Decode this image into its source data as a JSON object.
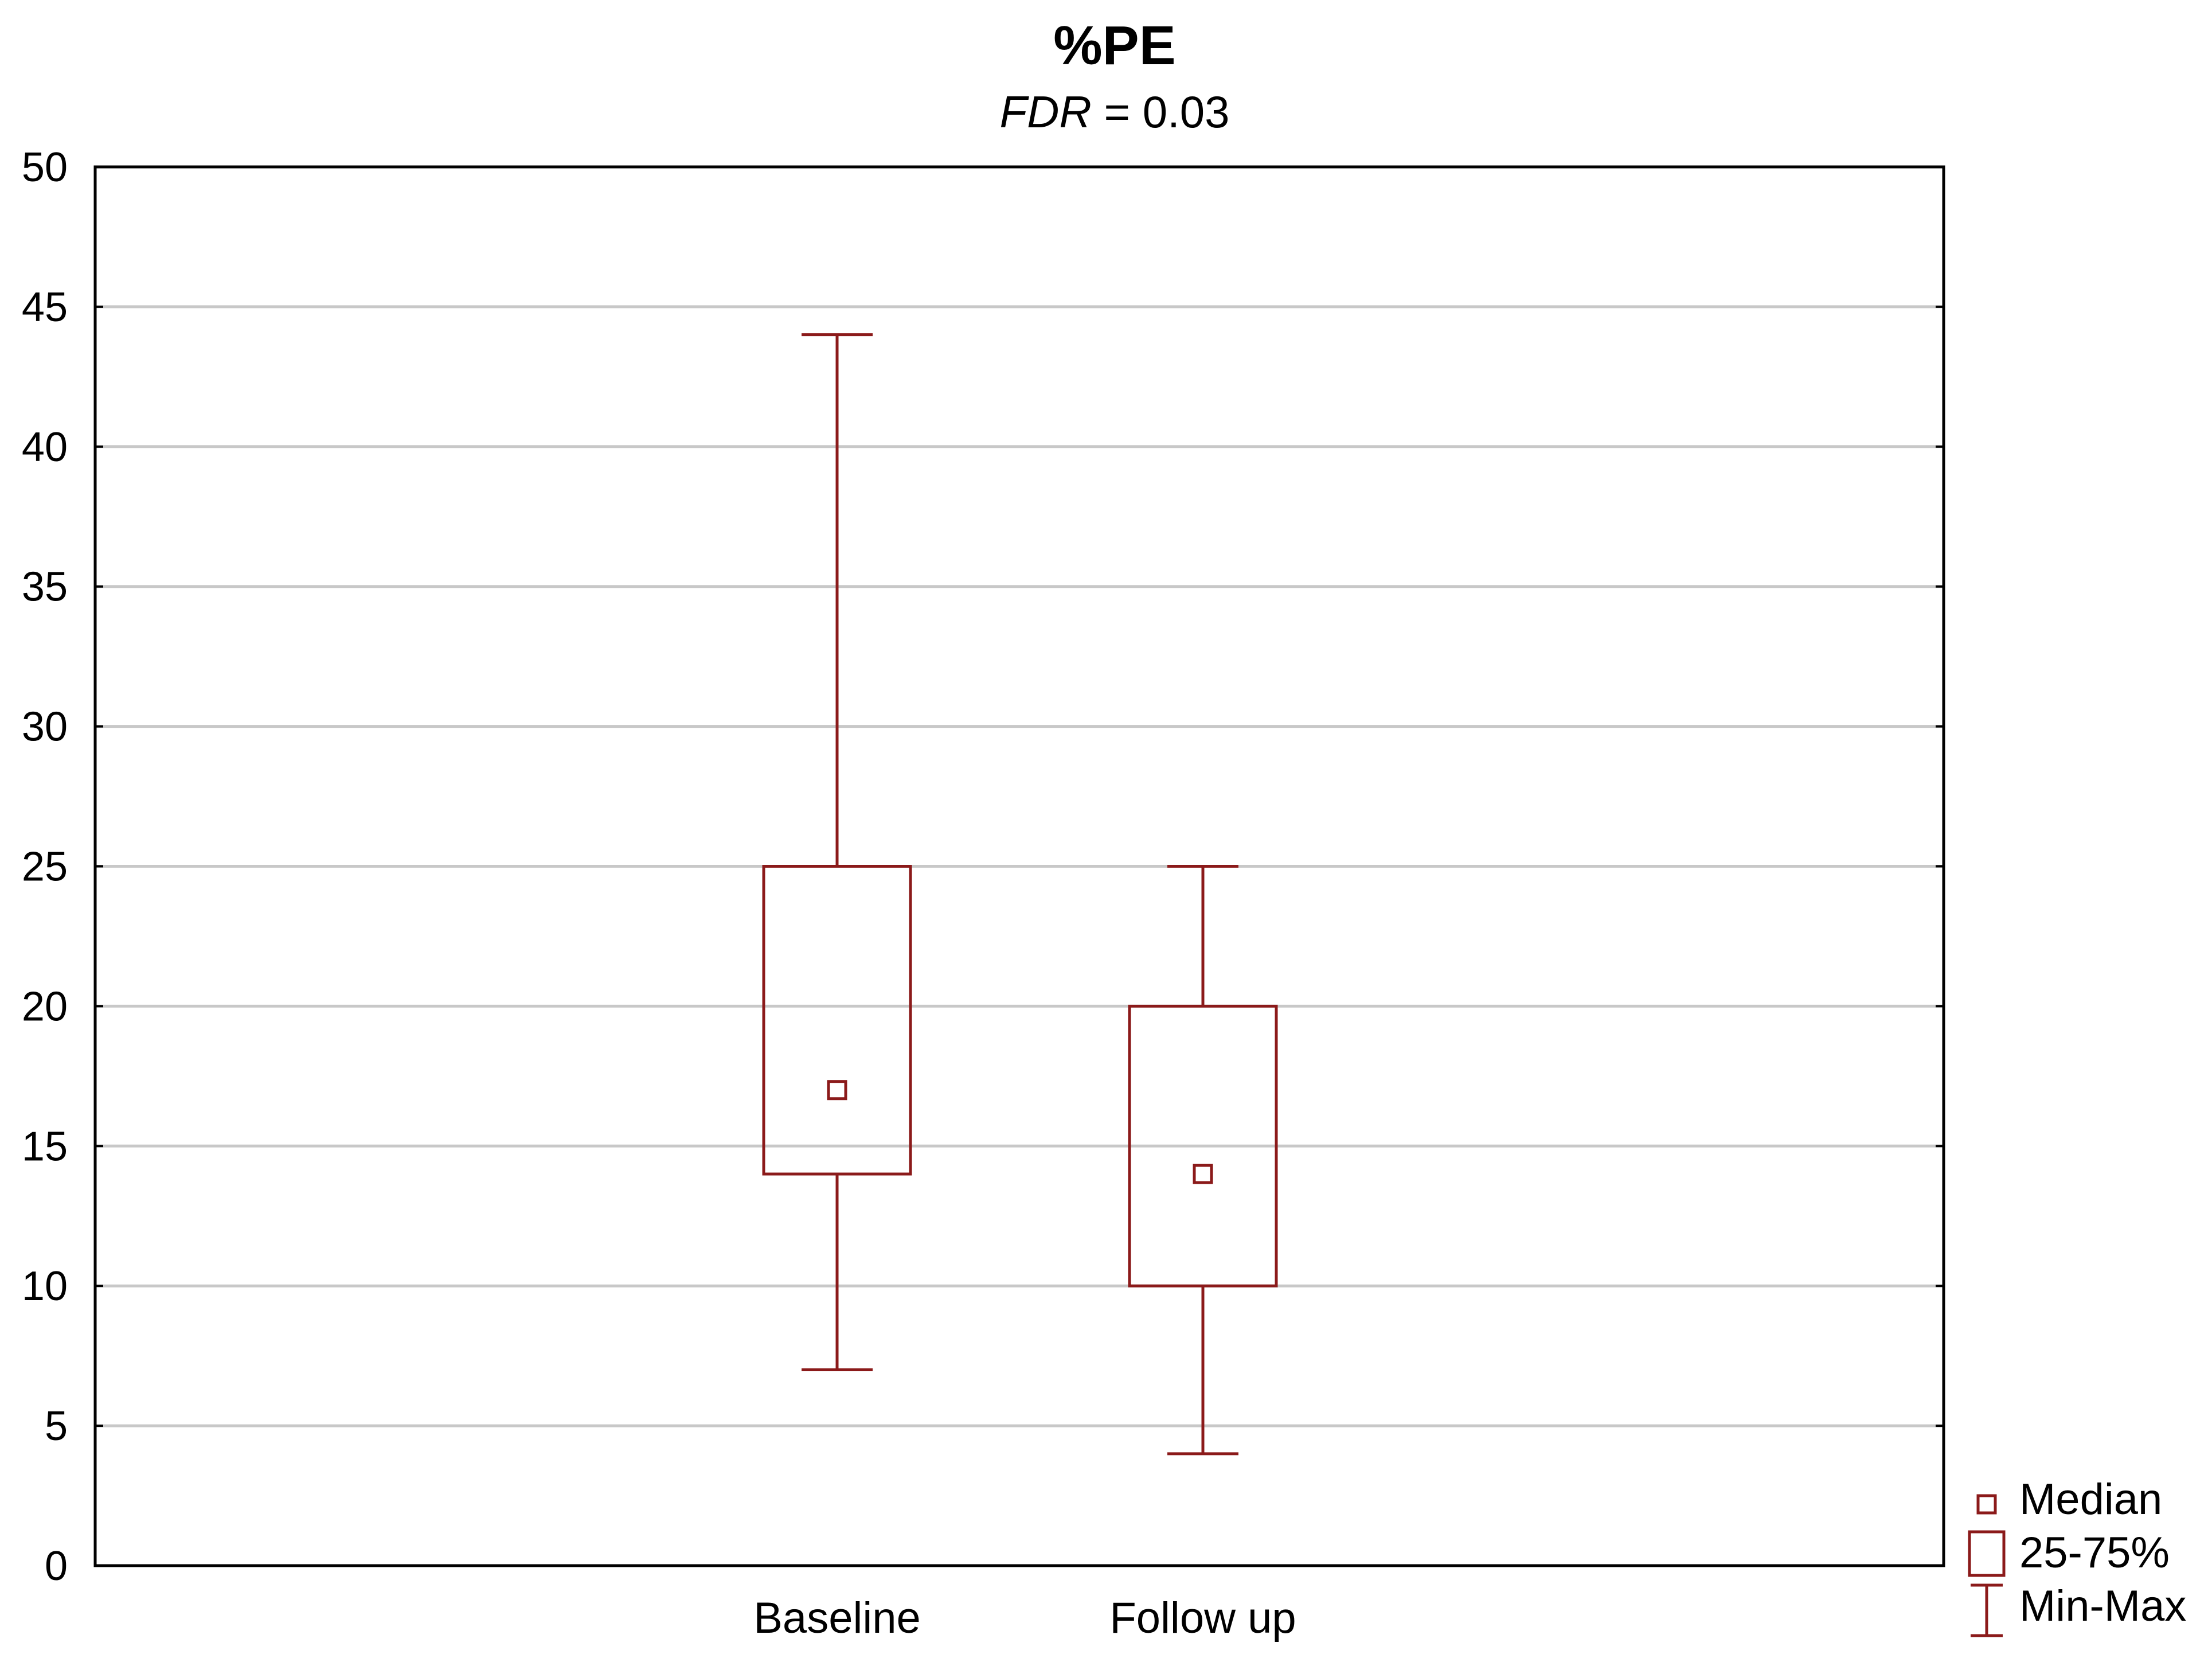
{
  "chart_data": {
    "type": "boxplot",
    "title": "%PE",
    "subtitle": {
      "italic_part": "FDR",
      "rest": " = 0.03"
    },
    "xlabel": "",
    "ylabel": "",
    "ylim": [
      0,
      50
    ],
    "yticks": [
      0,
      5,
      10,
      15,
      20,
      25,
      30,
      35,
      40,
      45,
      50
    ],
    "grid": true,
    "categories": [
      "Baseline",
      "Follow up"
    ],
    "series": [
      {
        "category": "Baseline",
        "min": 7,
        "q1": 14,
        "median": 17,
        "q3": 25,
        "max": 44
      },
      {
        "category": "Follow up",
        "min": 4,
        "q1": 10,
        "median": 14,
        "q3": 20,
        "max": 25
      }
    ],
    "legend": {
      "placement": "bottom-right, outside plot",
      "items": [
        {
          "key": "median",
          "label": "Median",
          "icon": "small-square-icon"
        },
        {
          "key": "box",
          "label": "25-75%",
          "icon": "box-icon"
        },
        {
          "key": "whisker",
          "label": "Min-Max",
          "icon": "whisker-icon"
        }
      ]
    },
    "colors": {
      "series": "#8b1a1a",
      "grid": "#c8c8c8",
      "axis": "#000000"
    }
  }
}
